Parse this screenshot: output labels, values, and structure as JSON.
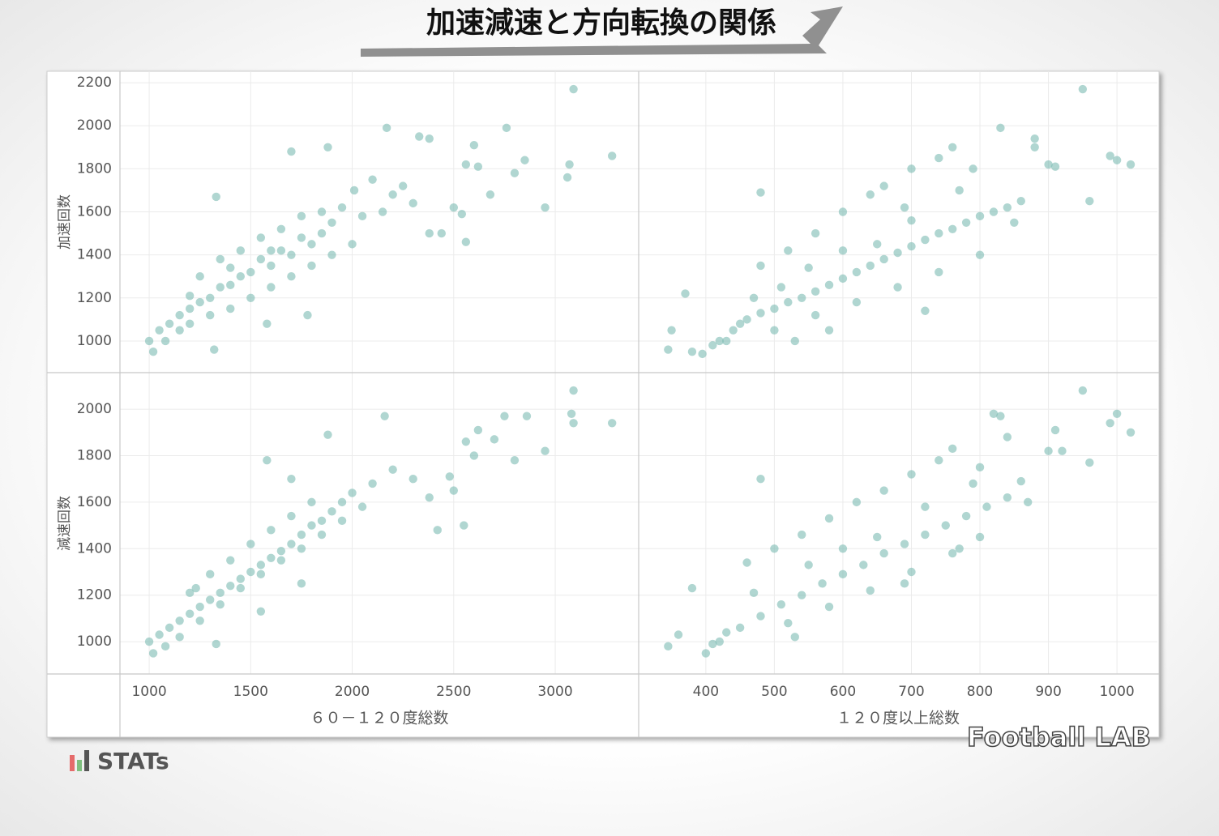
{
  "page": {
    "title": "加速減速と方向転換の関係",
    "brand": "STATs",
    "logo": "Football LAB"
  },
  "chart_data": [
    {
      "type": "scatter",
      "y_label": "加速回数",
      "color": "#7bbab2",
      "grid": true,
      "xlim": [
        856,
        3411
      ],
      "ylim": [
        853,
        2253
      ],
      "xticks": [
        1000,
        1500,
        2000,
        2500,
        3000
      ],
      "yticks": [
        1000,
        1200,
        1400,
        1600,
        1800,
        2000,
        2200
      ],
      "x": [
        3090,
        3280,
        3060,
        3070,
        2950,
        2760,
        2850,
        2800,
        2600,
        2680,
        2560,
        2620,
        2500,
        2540,
        2560,
        2440,
        2380,
        2170,
        2330,
        2380,
        1880,
        1700,
        1330,
        2010,
        2100,
        2200,
        2250,
        2300,
        2150,
        2050,
        1950,
        1900,
        1850,
        1800,
        1750,
        1700,
        1650,
        1600,
        1550,
        1500,
        1450,
        1400,
        1350,
        1300,
        1250,
        1200,
        1150,
        1100,
        1050,
        1000,
        1020,
        1080,
        1150,
        1200,
        1300,
        1400,
        1500,
        1600,
        1700,
        1800,
        1900,
        2000,
        1250,
        1350,
        1450,
        1550,
        1650,
        1750,
        1850,
        1320,
        1580,
        1780,
        1200,
        1400,
        1600
      ],
      "values": [
        2170,
        1860,
        1760,
        1820,
        1620,
        1990,
        1840,
        1780,
        1910,
        1680,
        1820,
        1810,
        1620,
        1590,
        1460,
        1500,
        1500,
        1990,
        1950,
        1940,
        1900,
        1880,
        1670,
        1700,
        1750,
        1680,
        1720,
        1640,
        1600,
        1580,
        1620,
        1550,
        1500,
        1450,
        1480,
        1400,
        1420,
        1350,
        1380,
        1320,
        1300,
        1260,
        1250,
        1200,
        1180,
        1150,
        1120,
        1080,
        1050,
        1000,
        950,
        1000,
        1050,
        1080,
        1120,
        1150,
        1200,
        1250,
        1300,
        1350,
        1400,
        1450,
        1300,
        1380,
        1420,
        1480,
        1520,
        1580,
        1600,
        960,
        1080,
        1120,
        1210,
        1340,
        1420
      ]
    },
    {
      "type": "scatter",
      "color": "#7bbab2",
      "grid": true,
      "xlim": [
        302,
        1059
      ],
      "ylim": [
        853,
        2253
      ],
      "xticks": [
        400,
        500,
        600,
        700,
        800,
        900,
        1000
      ],
      "yticks": [
        1000,
        1200,
        1400,
        1600,
        1800,
        2000,
        2200
      ],
      "x": [
        950,
        990,
        1000,
        1020,
        960,
        830,
        880,
        880,
        900,
        910,
        480,
        345,
        350,
        370,
        380,
        395,
        420,
        440,
        460,
        480,
        500,
        520,
        540,
        560,
        580,
        600,
        620,
        640,
        660,
        680,
        700,
        720,
        740,
        760,
        780,
        800,
        820,
        840,
        860,
        760,
        740,
        700,
        660,
        640,
        600,
        560,
        520,
        480,
        450,
        430,
        410,
        500,
        560,
        620,
        680,
        740,
        800,
        600,
        650,
        550,
        700,
        790,
        850,
        720,
        580,
        510,
        470,
        530,
        690,
        770
      ],
      "values": [
        2170,
        1860,
        1840,
        1820,
        1650,
        1990,
        1940,
        1900,
        1820,
        1810,
        1690,
        960,
        1050,
        1220,
        950,
        940,
        1000,
        1050,
        1100,
        1130,
        1150,
        1180,
        1200,
        1230,
        1260,
        1290,
        1320,
        1350,
        1380,
        1410,
        1440,
        1470,
        1500,
        1520,
        1550,
        1580,
        1600,
        1620,
        1650,
        1900,
        1850,
        1800,
        1720,
        1680,
        1600,
        1500,
        1420,
        1350,
        1080,
        1000,
        980,
        1050,
        1120,
        1180,
        1250,
        1320,
        1400,
        1420,
        1450,
        1340,
        1560,
        1800,
        1550,
        1140,
        1050,
        1250,
        1200,
        1000,
        1620,
        1700
      ]
    },
    {
      "type": "scatter",
      "y_label": "減速回数",
      "x_label": "６０－１２０度総数",
      "color": "#7bbab2",
      "grid": true,
      "xlim": [
        856,
        3411
      ],
      "ylim": [
        861,
        2157
      ],
      "xticks": [
        1000,
        1500,
        2000,
        2500,
        3000
      ],
      "yticks": [
        1000,
        1200,
        1400,
        1600,
        1800,
        2000
      ],
      "x": [
        3090,
        3080,
        3280,
        3090,
        2950,
        2860,
        2750,
        2800,
        2620,
        2560,
        2480,
        2420,
        2550,
        2160,
        1880,
        1700,
        1580,
        2300,
        2200,
        2100,
        2000,
        1950,
        1900,
        1850,
        1800,
        1750,
        1700,
        1650,
        1600,
        1550,
        1500,
        1450,
        1400,
        1350,
        1300,
        1250,
        1200,
        1150,
        1100,
        1050,
        1000,
        1020,
        1080,
        1150,
        1250,
        1350,
        1450,
        1550,
        1650,
        1750,
        1850,
        1950,
        2050,
        1300,
        1400,
        1500,
        1600,
        1700,
        1800,
        1200,
        1330,
        1550,
        1750,
        1230,
        2380,
        2500,
        2700,
        2600
      ],
      "values": [
        2080,
        1980,
        1940,
        1940,
        1820,
        1970,
        1970,
        1780,
        1910,
        1860,
        1710,
        1480,
        1500,
        1970,
        1890,
        1700,
        1780,
        1700,
        1740,
        1680,
        1640,
        1600,
        1560,
        1520,
        1500,
        1460,
        1420,
        1390,
        1360,
        1330,
        1300,
        1270,
        1240,
        1210,
        1180,
        1150,
        1120,
        1090,
        1060,
        1030,
        1000,
        950,
        980,
        1020,
        1090,
        1160,
        1230,
        1290,
        1350,
        1400,
        1460,
        1520,
        1580,
        1290,
        1350,
        1420,
        1480,
        1540,
        1600,
        1210,
        990,
        1130,
        1250,
        1230,
        1620,
        1650,
        1870,
        1800
      ]
    },
    {
      "type": "scatter",
      "x_label": "１２０度以上総数",
      "color": "#7bbab2",
      "grid": true,
      "xlim": [
        302,
        1059
      ],
      "ylim": [
        861,
        2157
      ],
      "xticks": [
        400,
        500,
        600,
        700,
        800,
        900,
        1000
      ],
      "yticks": [
        1000,
        1200,
        1400,
        1600,
        1800,
        2000
      ],
      "x": [
        950,
        1000,
        990,
        1020,
        960,
        910,
        900,
        920,
        820,
        830,
        840,
        870,
        800,
        480,
        345,
        360,
        380,
        400,
        420,
        450,
        480,
        510,
        540,
        570,
        600,
        630,
        660,
        690,
        720,
        750,
        780,
        810,
        840,
        760,
        740,
        700,
        660,
        620,
        580,
        540,
        500,
        460,
        430,
        410,
        520,
        580,
        640,
        700,
        760,
        800,
        600,
        650,
        550,
        720,
        790,
        470,
        530,
        690,
        770,
        860
      ],
      "values": [
        2080,
        1980,
        1940,
        1900,
        1770,
        1910,
        1820,
        1820,
        1980,
        1970,
        1880,
        1600,
        1750,
        1700,
        980,
        1030,
        1230,
        950,
        1000,
        1060,
        1110,
        1160,
        1200,
        1250,
        1290,
        1330,
        1380,
        1420,
        1460,
        1500,
        1540,
        1580,
        1620,
        1830,
        1780,
        1720,
        1650,
        1600,
        1530,
        1460,
        1400,
        1340,
        1040,
        990,
        1080,
        1150,
        1220,
        1300,
        1380,
        1450,
        1400,
        1450,
        1330,
        1580,
        1680,
        1210,
        1020,
        1250,
        1400,
        1690
      ]
    }
  ]
}
